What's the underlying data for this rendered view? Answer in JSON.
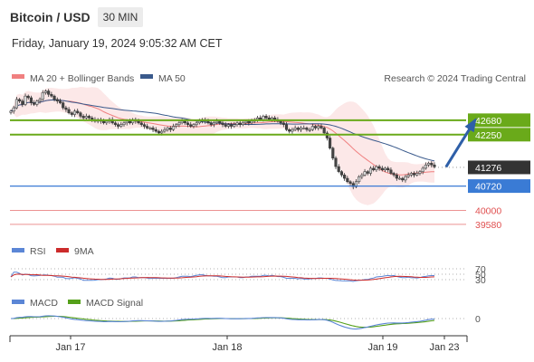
{
  "header": {
    "title": "Bitcoin / USD",
    "timeframe": "30 MIN",
    "datetime": "Friday, January 19, 2024 9:05:32 AM CET"
  },
  "colors": {
    "bollinger": "#f08080",
    "ma50": "#3a5a8c",
    "resistance": "#6aaa1a",
    "support": "#3a7bd5",
    "target": "#e05050",
    "arrow": "#2e5fa8",
    "rsi": "#5b86d6",
    "rsi_ma": "#cc2b2b",
    "macd": "#5b86d6",
    "macd_signal": "#55a01a"
  },
  "chart_data": [
    {
      "type": "candlestick",
      "legend": [
        {
          "name": "MA 20 + Bollinger Bands",
          "color": "#f08080"
        },
        {
          "name": "MA 50",
          "color": "#3a5a8c"
        }
      ],
      "credit": "Research © 2024 Trading Central",
      "x_tick_labels": [
        "Jan 17",
        "Jan 18",
        "Jan 19",
        "Jan 23"
      ],
      "ylim": [
        39200,
        43700
      ],
      "levels": [
        {
          "value": 42680,
          "label": "42680",
          "kind": "resistance"
        },
        {
          "value": 42250,
          "label": "42250",
          "kind": "resistance"
        },
        {
          "value": 41276,
          "label": "41276",
          "kind": "last"
        },
        {
          "value": 40720,
          "label": "40720",
          "kind": "support"
        },
        {
          "value": 40000,
          "label": "40000",
          "kind": "target"
        },
        {
          "value": 39580,
          "label": "39580",
          "kind": "target"
        }
      ],
      "projection": {
        "from": [
          150,
          41290
        ],
        "to": [
          160,
          42680
        ]
      },
      "closes": [
        42950,
        43050,
        43300,
        43250,
        43150,
        43400,
        43350,
        43200,
        43150,
        43250,
        43300,
        43500,
        43550,
        43450,
        43400,
        43300,
        43250,
        43200,
        43050,
        43000,
        42900,
        42850,
        42950,
        42900,
        42800,
        42750,
        42800,
        42750,
        42700,
        42650,
        42700,
        42650,
        42600,
        42650,
        42700,
        42600,
        42550,
        42500,
        42550,
        42600,
        42650,
        42600,
        42700,
        42650,
        42600,
        42550,
        42500,
        42450,
        42450,
        42400,
        42350,
        42300,
        42350,
        42400,
        42450,
        42400,
        42500,
        42550,
        42600,
        42650,
        42600,
        42550,
        42500,
        42550,
        42600,
        42650,
        42700,
        42650,
        42600,
        42550,
        42600,
        42650,
        42600,
        42550,
        42500,
        42550,
        42500,
        42550,
        42600,
        42550,
        42600,
        42650,
        42600,
        42650,
        42700,
        42750,
        42700,
        42800,
        42750,
        42700,
        42750,
        42700,
        42650,
        42600,
        42550,
        42400,
        42350,
        42400,
        42450,
        42400,
        42450,
        42450,
        42400,
        42400,
        42500,
        42450,
        42500,
        42450,
        42300,
        42150,
        41850,
        41550,
        41300,
        41150,
        41050,
        40950,
        40850,
        40800,
        40700,
        40850,
        41000,
        41050,
        41150,
        41100,
        41250,
        41200,
        41300,
        41250,
        41200,
        41250,
        41200,
        41100,
        41050,
        40950,
        40950,
        40900,
        41000,
        41050,
        41100,
        41050,
        41100,
        41150,
        41250,
        41350,
        41400,
        41350,
        41290
      ]
    },
    {
      "type": "line",
      "legend": [
        {
          "name": "RSI"
        },
        {
          "name": "9MA"
        }
      ],
      "levels": [
        70,
        50,
        30
      ],
      "ylim": [
        0,
        100
      ]
    },
    {
      "type": "line",
      "legend": [
        {
          "name": "MACD"
        },
        {
          "name": "MACD Signal"
        }
      ],
      "levels": [
        0
      ]
    }
  ]
}
